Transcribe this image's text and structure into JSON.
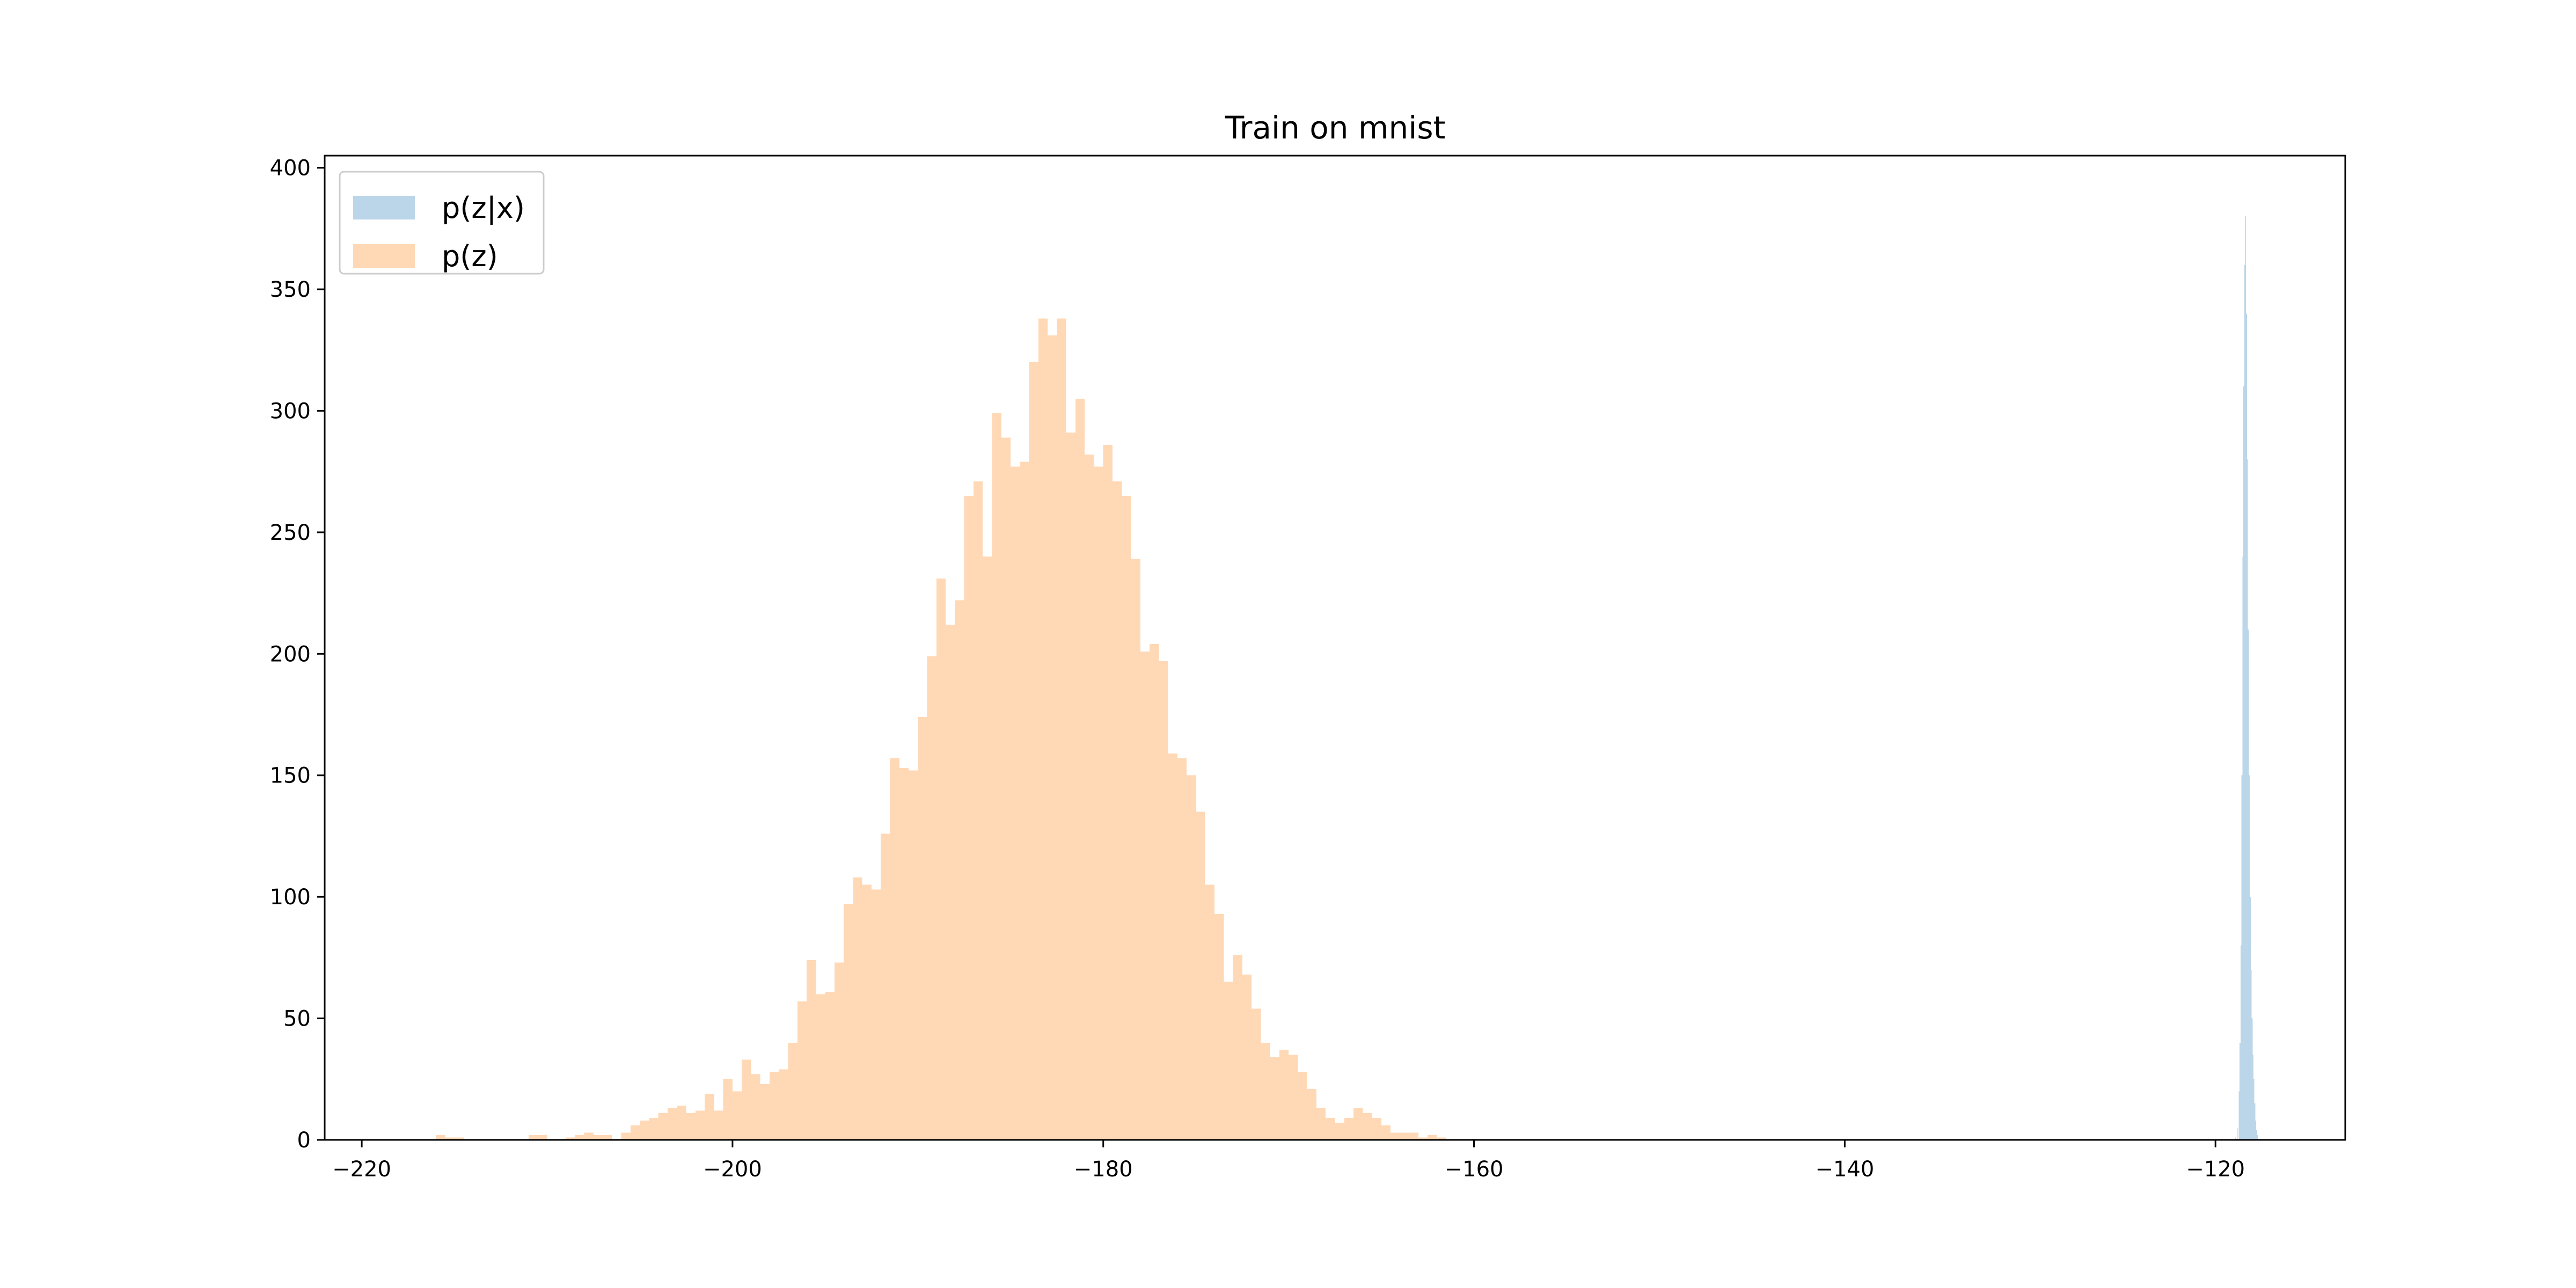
{
  "chart_data": {
    "type": "bar",
    "title": "Train on mnist",
    "xlabel": "",
    "ylabel": "",
    "xlim": [
      -222,
      -113
    ],
    "ylim": [
      0,
      405
    ],
    "xticks": [
      -220,
      -200,
      -180,
      -160,
      -140,
      -120
    ],
    "yticks": [
      0,
      50,
      100,
      150,
      200,
      250,
      300,
      350,
      400
    ],
    "grid": false,
    "legend_position": "top-left",
    "series": [
      {
        "name": "p(z|x)",
        "color": "#1f77b4",
        "alpha": 0.3,
        "bin_width": 0.05,
        "bins": [
          [
            -118.95,
            1
          ],
          [
            -118.85,
            5
          ],
          [
            -118.75,
            20
          ],
          [
            -118.7,
            40
          ],
          [
            -118.65,
            80
          ],
          [
            -118.6,
            150
          ],
          [
            -118.55,
            240
          ],
          [
            -118.5,
            310
          ],
          [
            -118.45,
            360
          ],
          [
            -118.4,
            380
          ],
          [
            -118.35,
            340
          ],
          [
            -118.3,
            280
          ],
          [
            -118.25,
            210
          ],
          [
            -118.2,
            150
          ],
          [
            -118.15,
            100
          ],
          [
            -118.1,
            70
          ],
          [
            -118.05,
            50
          ],
          [
            -118.0,
            35
          ],
          [
            -117.95,
            25
          ],
          [
            -117.9,
            15
          ],
          [
            -117.85,
            8
          ],
          [
            -117.8,
            4
          ],
          [
            -117.75,
            2
          ]
        ]
      },
      {
        "name": "p(z)",
        "color": "#ff7f0e",
        "alpha": 0.3,
        "bin_width": 0.5,
        "bins": [
          [
            -216,
            2
          ],
          [
            -215.5,
            1
          ],
          [
            -215,
            1
          ],
          [
            -211,
            2
          ],
          [
            -210.5,
            2
          ],
          [
            -209,
            1
          ],
          [
            -208.5,
            2
          ],
          [
            -208,
            3
          ],
          [
            -207.5,
            2
          ],
          [
            -207,
            2
          ],
          [
            -206.5,
            0
          ],
          [
            -206,
            3
          ],
          [
            -205.5,
            6
          ],
          [
            -205,
            8
          ],
          [
            -204.5,
            9
          ],
          [
            -204,
            11
          ],
          [
            -203.5,
            13
          ],
          [
            -203,
            14
          ],
          [
            -202.5,
            11
          ],
          [
            -202,
            12
          ],
          [
            -201.5,
            19
          ],
          [
            -201,
            12
          ],
          [
            -200.5,
            25
          ],
          [
            -200,
            20
          ],
          [
            -199.5,
            33
          ],
          [
            -199,
            27
          ],
          [
            -198.5,
            23
          ],
          [
            -198,
            28
          ],
          [
            -197.5,
            29
          ],
          [
            -197,
            40
          ],
          [
            -196.5,
            57
          ],
          [
            -196,
            74
          ],
          [
            -195.5,
            60
          ],
          [
            -195,
            61
          ],
          [
            -194.5,
            73
          ],
          [
            -194,
            97
          ],
          [
            -193.5,
            108
          ],
          [
            -193,
            105
          ],
          [
            -192.5,
            103
          ],
          [
            -192,
            126
          ],
          [
            -191.5,
            157
          ],
          [
            -191,
            153
          ],
          [
            -190.5,
            152
          ],
          [
            -190,
            174
          ],
          [
            -189.5,
            199
          ],
          [
            -189,
            231
          ],
          [
            -188.5,
            212
          ],
          [
            -188,
            222
          ],
          [
            -187.5,
            265
          ],
          [
            -187,
            271
          ],
          [
            -186.5,
            240
          ],
          [
            -186,
            299
          ],
          [
            -185.5,
            289
          ],
          [
            -185,
            277
          ],
          [
            -184.5,
            279
          ],
          [
            -184,
            320
          ],
          [
            -183.5,
            338
          ],
          [
            -183,
            331
          ],
          [
            -182.5,
            338
          ],
          [
            -182,
            291
          ],
          [
            -181.5,
            305
          ],
          [
            -181,
            282
          ],
          [
            -180.5,
            277
          ],
          [
            -180,
            286
          ],
          [
            -179.5,
            271
          ],
          [
            -179,
            265
          ],
          [
            -178.5,
            239
          ],
          [
            -178,
            201
          ],
          [
            -177.5,
            204
          ],
          [
            -177,
            197
          ],
          [
            -176.5,
            159
          ],
          [
            -176,
            157
          ],
          [
            -175.5,
            150
          ],
          [
            -175,
            135
          ],
          [
            -174.5,
            105
          ],
          [
            -174,
            93
          ],
          [
            -173.5,
            65
          ],
          [
            -173,
            76
          ],
          [
            -172.5,
            68
          ],
          [
            -172,
            54
          ],
          [
            -171.5,
            40
          ],
          [
            -171,
            34
          ],
          [
            -170.5,
            37
          ],
          [
            -170,
            35
          ],
          [
            -169.5,
            28
          ],
          [
            -169,
            21
          ],
          [
            -168.5,
            13
          ],
          [
            -168,
            9
          ],
          [
            -167.5,
            7
          ],
          [
            -167,
            9
          ],
          [
            -166.5,
            13
          ],
          [
            -166,
            11
          ],
          [
            -165.5,
            9
          ],
          [
            -165,
            6
          ],
          [
            -164.5,
            3
          ],
          [
            -164,
            3
          ],
          [
            -163.5,
            3
          ],
          [
            -163,
            1
          ],
          [
            -162.5,
            2
          ],
          [
            -162,
            1
          ]
        ]
      }
    ]
  }
}
